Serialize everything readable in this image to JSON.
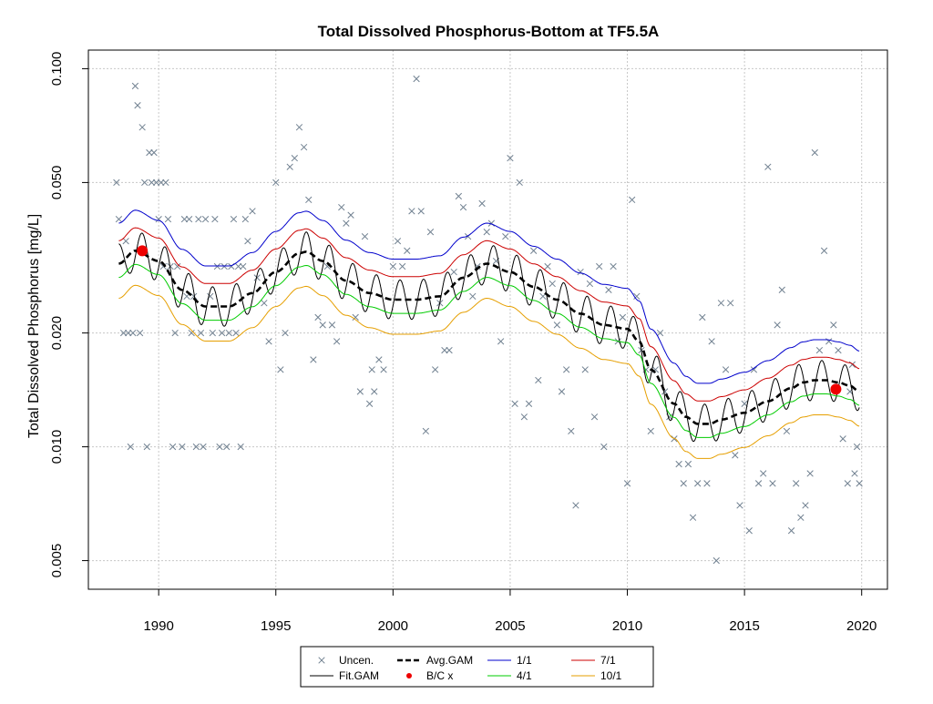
{
  "chart_data": {
    "type": "line",
    "title": "Total Dissolved Phosphorus-Bottom at TF5.5A",
    "xlabel": "",
    "ylabel": "Total Dissolved Phosphorus [mg/L]",
    "y_scale": "log",
    "xlim": [
      1987.0,
      2021.1
    ],
    "ylim": [
      0.0042,
      0.112
    ],
    "x_ticks": [
      1990,
      1995,
      2000,
      2005,
      2010,
      2015,
      2020
    ],
    "x_tick_labels": [
      "1990",
      "1995",
      "2000",
      "2005",
      "2010",
      "2015",
      "2020"
    ],
    "y_ticks": [
      0.005,
      0.01,
      0.02,
      0.05,
      0.1
    ],
    "y_tick_labels": [
      "0.005",
      "0.010",
      "0.020",
      "0.050",
      "0.100"
    ],
    "grid": true,
    "legend_position": "bottom",
    "legend": [
      {
        "label": "Uncen.",
        "symbol": "x",
        "color": "#708090"
      },
      {
        "label": "Fit.GAM",
        "symbol": "line",
        "color": "#000000"
      },
      {
        "label": "Avg.GAM",
        "symbol": "dashed",
        "color": "#000000"
      },
      {
        "label": "B/C x",
        "symbol": "dot",
        "color": "#ee0000"
      },
      {
        "label": "1/1",
        "symbol": "line",
        "color": "#0000cc"
      },
      {
        "label": "4/1",
        "symbol": "line",
        "color": "#00cc00"
      },
      {
        "label": "7/1",
        "symbol": "line",
        "color": "#cc0000"
      },
      {
        "label": "10/1",
        "symbol": "line",
        "color": "#e69f00"
      }
    ],
    "avg_gam": {
      "x": [
        1988.3,
        1989.0,
        1990.0,
        1991.0,
        1992.0,
        1993.0,
        1994.0,
        1995.0,
        1996.0,
        1996.3,
        1997.0,
        1998.0,
        1999.0,
        2000.0,
        2001.0,
        2002.0,
        2003.0,
        2004.0,
        2005.0,
        2006.0,
        2007.0,
        2008.0,
        2009.0,
        2010.0,
        2010.5,
        2011.0,
        2012.0,
        2012.5,
        2013.0,
        2013.5,
        2014.0,
        2015.0,
        2016.0,
        2017.0,
        2017.5,
        2018.0,
        2018.5,
        2019.0,
        2019.5,
        2019.9
      ],
      "y": [
        0.0305,
        0.033,
        0.031,
        0.026,
        0.0235,
        0.0235,
        0.0255,
        0.029,
        0.0325,
        0.0328,
        0.031,
        0.0275,
        0.0255,
        0.0245,
        0.0245,
        0.025,
        0.028,
        0.0305,
        0.029,
        0.0265,
        0.0245,
        0.0225,
        0.021,
        0.0205,
        0.019,
        0.016,
        0.013,
        0.012,
        0.0115,
        0.0115,
        0.0118,
        0.0123,
        0.0132,
        0.0143,
        0.0148,
        0.015,
        0.015,
        0.0148,
        0.0145,
        0.014
      ]
    },
    "fit_gam_seasonal_amplitude": 0.12,
    "season_curves": [
      {
        "name": "1/1",
        "color": "#0000cc",
        "factor": 1.28
      },
      {
        "name": "7/1",
        "color": "#cc0000",
        "factor": 1.15
      },
      {
        "name": "4/1",
        "color": "#00cc00",
        "factor": 0.92
      },
      {
        "name": "10/1",
        "color": "#e69f00",
        "factor": 0.81
      }
    ],
    "bc_points": [
      {
        "x": 1989.3,
        "y": 0.033
      },
      {
        "x": 2018.9,
        "y": 0.0142
      }
    ],
    "observations": [
      [
        1988.2,
        0.05
      ],
      [
        1988.3,
        0.04
      ],
      [
        1988.5,
        0.02
      ],
      [
        1988.6,
        0.035
      ],
      [
        1988.7,
        0.02
      ],
      [
        1988.8,
        0.01
      ],
      [
        1988.9,
        0.02
      ],
      [
        1989.0,
        0.09
      ],
      [
        1989.1,
        0.08
      ],
      [
        1989.2,
        0.02
      ],
      [
        1989.3,
        0.07
      ],
      [
        1989.4,
        0.05
      ],
      [
        1989.5,
        0.01
      ],
      [
        1989.6,
        0.06
      ],
      [
        1989.7,
        0.05
      ],
      [
        1989.8,
        0.06
      ],
      [
        1989.9,
        0.05
      ],
      [
        1990.0,
        0.04
      ],
      [
        1990.1,
        0.05
      ],
      [
        1990.2,
        0.03
      ],
      [
        1990.3,
        0.05
      ],
      [
        1990.4,
        0.04
      ],
      [
        1990.5,
        0.03
      ],
      [
        1990.6,
        0.01
      ],
      [
        1990.7,
        0.02
      ],
      [
        1990.8,
        0.03
      ],
      [
        1991.0,
        0.01
      ],
      [
        1991.1,
        0.04
      ],
      [
        1991.2,
        0.025
      ],
      [
        1991.3,
        0.04
      ],
      [
        1991.4,
        0.02
      ],
      [
        1991.5,
        0.025
      ],
      [
        1991.6,
        0.01
      ],
      [
        1991.7,
        0.04
      ],
      [
        1991.8,
        0.02
      ],
      [
        1991.9,
        0.01
      ],
      [
        1992.0,
        0.04
      ],
      [
        1992.2,
        0.025
      ],
      [
        1992.3,
        0.02
      ],
      [
        1992.4,
        0.04
      ],
      [
        1992.5,
        0.03
      ],
      [
        1992.6,
        0.01
      ],
      [
        1992.7,
        0.02
      ],
      [
        1992.8,
        0.03
      ],
      [
        1992.9,
        0.01
      ],
      [
        1993.0,
        0.02
      ],
      [
        1993.1,
        0.03
      ],
      [
        1993.2,
        0.04
      ],
      [
        1993.3,
        0.02
      ],
      [
        1993.4,
        0.03
      ],
      [
        1993.5,
        0.01
      ],
      [
        1993.6,
        0.03
      ],
      [
        1993.7,
        0.04
      ],
      [
        1993.8,
        0.035
      ],
      [
        1994.0,
        0.042
      ],
      [
        1994.2,
        0.028
      ],
      [
        1994.5,
        0.024
      ],
      [
        1994.7,
        0.019
      ],
      [
        1995.0,
        0.05
      ],
      [
        1995.2,
        0.016
      ],
      [
        1995.4,
        0.02
      ],
      [
        1995.6,
        0.055
      ],
      [
        1995.8,
        0.058
      ],
      [
        1996.0,
        0.07
      ],
      [
        1996.2,
        0.062
      ],
      [
        1996.4,
        0.045
      ],
      [
        1996.6,
        0.017
      ],
      [
        1996.8,
        0.022
      ],
      [
        1997.0,
        0.021
      ],
      [
        1997.2,
        0.03
      ],
      [
        1997.4,
        0.021
      ],
      [
        1997.6,
        0.019
      ],
      [
        1997.8,
        0.043
      ],
      [
        1998.0,
        0.039
      ],
      [
        1998.2,
        0.041
      ],
      [
        1998.4,
        0.022
      ],
      [
        1998.6,
        0.014
      ],
      [
        1998.8,
        0.036
      ],
      [
        1999.0,
        0.013
      ],
      [
        1999.1,
        0.016
      ],
      [
        1999.2,
        0.014
      ],
      [
        1999.4,
        0.017
      ],
      [
        1999.6,
        0.016
      ],
      [
        2000.0,
        0.03
      ],
      [
        2000.2,
        0.035
      ],
      [
        2000.4,
        0.03
      ],
      [
        2000.6,
        0.033
      ],
      [
        2000.8,
        0.042
      ],
      [
        2001.0,
        0.094
      ],
      [
        2001.2,
        0.042
      ],
      [
        2001.4,
        0.011
      ],
      [
        2001.6,
        0.037
      ],
      [
        2001.8,
        0.016
      ],
      [
        2002.0,
        0.024
      ],
      [
        2002.2,
        0.018
      ],
      [
        2002.4,
        0.018
      ],
      [
        2002.6,
        0.029
      ],
      [
        2002.8,
        0.046
      ],
      [
        2003.0,
        0.043
      ],
      [
        2003.2,
        0.036
      ],
      [
        2003.4,
        0.025
      ],
      [
        2003.6,
        0.03
      ],
      [
        2003.8,
        0.044
      ],
      [
        2004.0,
        0.037
      ],
      [
        2004.2,
        0.039
      ],
      [
        2004.4,
        0.031
      ],
      [
        2004.6,
        0.019
      ],
      [
        2004.8,
        0.036
      ],
      [
        2005.0,
        0.058
      ],
      [
        2005.2,
        0.013
      ],
      [
        2005.4,
        0.05
      ],
      [
        2005.6,
        0.012
      ],
      [
        2005.8,
        0.013
      ],
      [
        2006.0,
        0.033
      ],
      [
        2006.2,
        0.015
      ],
      [
        2006.4,
        0.025
      ],
      [
        2006.6,
        0.03
      ],
      [
        2006.8,
        0.027
      ],
      [
        2007.0,
        0.021
      ],
      [
        2007.2,
        0.014
      ],
      [
        2007.4,
        0.016
      ],
      [
        2007.6,
        0.011
      ],
      [
        2007.8,
        0.007
      ],
      [
        2008.0,
        0.029
      ],
      [
        2008.2,
        0.016
      ],
      [
        2008.4,
        0.027
      ],
      [
        2008.6,
        0.012
      ],
      [
        2008.8,
        0.03
      ],
      [
        2009.0,
        0.01
      ],
      [
        2009.2,
        0.026
      ],
      [
        2009.4,
        0.03
      ],
      [
        2009.6,
        0.019
      ],
      [
        2009.8,
        0.022
      ],
      [
        2010.0,
        0.008
      ],
      [
        2010.2,
        0.045
      ],
      [
        2010.4,
        0.025
      ],
      [
        2010.6,
        0.018
      ],
      [
        2010.8,
        0.016
      ],
      [
        2011.0,
        0.011
      ],
      [
        2011.2,
        0.016
      ],
      [
        2011.4,
        0.02
      ],
      [
        2011.6,
        0.014
      ],
      [
        2011.8,
        0.012
      ],
      [
        2012.0,
        0.0105
      ],
      [
        2012.2,
        0.009
      ],
      [
        2012.4,
        0.008
      ],
      [
        2012.6,
        0.009
      ],
      [
        2012.8,
        0.0065
      ],
      [
        2013.0,
        0.008
      ],
      [
        2013.2,
        0.022
      ],
      [
        2013.4,
        0.008
      ],
      [
        2013.6,
        0.019
      ],
      [
        2013.8,
        0.005
      ],
      [
        2014.0,
        0.024
      ],
      [
        2014.2,
        0.016
      ],
      [
        2014.4,
        0.024
      ],
      [
        2014.6,
        0.0095
      ],
      [
        2014.8,
        0.007
      ],
      [
        2015.0,
        0.013
      ],
      [
        2015.2,
        0.006
      ],
      [
        2015.4,
        0.016
      ],
      [
        2015.6,
        0.008
      ],
      [
        2015.8,
        0.0085
      ],
      [
        2016.0,
        0.055
      ],
      [
        2016.2,
        0.008
      ],
      [
        2016.4,
        0.021
      ],
      [
        2016.6,
        0.026
      ],
      [
        2016.8,
        0.011
      ],
      [
        2017.0,
        0.006
      ],
      [
        2017.2,
        0.008
      ],
      [
        2017.4,
        0.0065
      ],
      [
        2017.6,
        0.007
      ],
      [
        2017.8,
        0.0085
      ],
      [
        2018.0,
        0.06
      ],
      [
        2018.2,
        0.018
      ],
      [
        2018.4,
        0.033
      ],
      [
        2018.6,
        0.019
      ],
      [
        2018.8,
        0.021
      ],
      [
        2019.0,
        0.018
      ],
      [
        2019.2,
        0.0105
      ],
      [
        2019.4,
        0.008
      ],
      [
        2019.5,
        0.014
      ],
      [
        2019.6,
        0.0165
      ],
      [
        2019.7,
        0.0085
      ],
      [
        2019.8,
        0.01
      ],
      [
        2019.9,
        0.008
      ]
    ]
  }
}
